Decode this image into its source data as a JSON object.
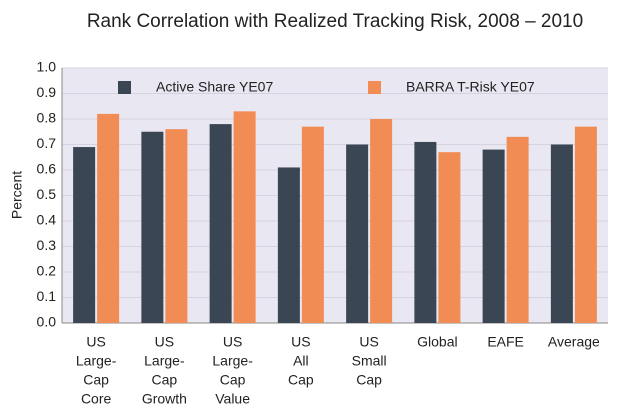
{
  "chart_data": {
    "type": "bar",
    "title": "Rank Correlation with Realized Tracking Risk, 2008 – 2010",
    "y_label": "Percent",
    "categories": [
      [
        "US",
        "Large-",
        "Cap",
        "Core"
      ],
      [
        "US",
        "Large-",
        "Cap",
        "Growth"
      ],
      [
        "US",
        "Large-",
        "Cap",
        "Value"
      ],
      [
        "US",
        "All",
        "Cap"
      ],
      [
        "US",
        "Small",
        "Cap"
      ],
      [
        "Global"
      ],
      [
        "EAFE"
      ],
      [
        "Average"
      ]
    ],
    "series": [
      {
        "name": "Active Share YE07",
        "color": "#3b4654",
        "values": [
          0.69,
          0.75,
          0.78,
          0.61,
          0.7,
          0.71,
          0.68,
          0.7
        ]
      },
      {
        "name": "BARRA T-Risk YE07",
        "color": "#f28c55",
        "values": [
          0.82,
          0.76,
          0.83,
          0.77,
          0.8,
          0.67,
          0.73,
          0.77
        ]
      }
    ],
    "ylim": [
      0,
      1
    ],
    "yticks": [
      {
        "value": 0,
        "label": "0.0"
      },
      0.1,
      0.2,
      0.3,
      0.4,
      0.5,
      0.6,
      0.7,
      0.8,
      0.9,
      {
        "value": 1,
        "label": "1.0"
      }
    ],
    "grid": true,
    "legend": "top"
  }
}
